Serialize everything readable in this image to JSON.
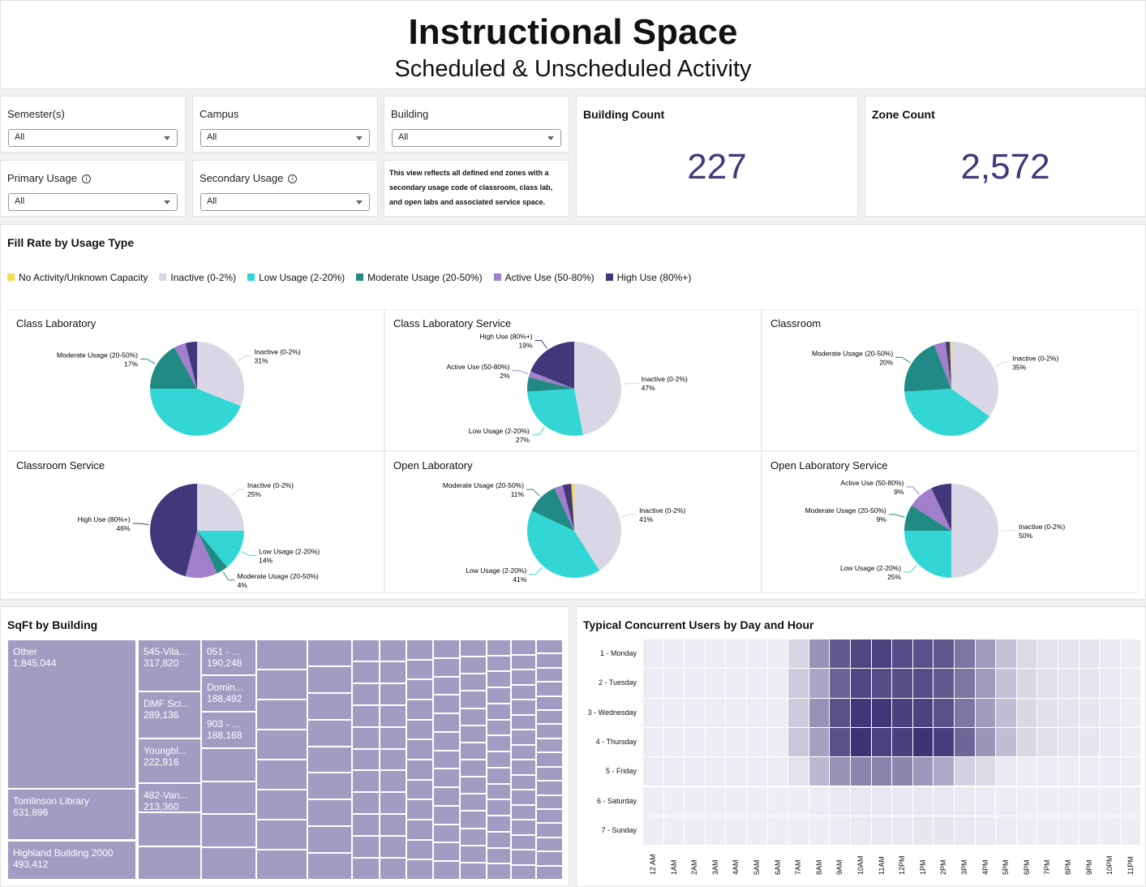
{
  "header": {
    "title": "Instructional Space",
    "subtitle": "Scheduled & Unscheduled Activity"
  },
  "filters": [
    {
      "label": "Semester(s)",
      "value": "All"
    },
    {
      "label": "Campus",
      "value": "All"
    },
    {
      "label": "Building",
      "value": "All"
    },
    {
      "label": "Primary Usage",
      "value": "All",
      "info": true
    },
    {
      "label": "Secondary Usage",
      "value": "All",
      "info": true
    }
  ],
  "note": "This view reflects all defined end zones with a secondary usage code of classroom, class lab, and open labs and associated service space.",
  "kpis": [
    {
      "label": "Building Count",
      "value": "227"
    },
    {
      "label": "Zone Count",
      "value": "2,572"
    }
  ],
  "fill_rate": {
    "title": "Fill Rate by Usage Type",
    "legend": [
      {
        "name": "No Activity/Unknown Capacity",
        "color": "#f2dd4f"
      },
      {
        "name": "Inactive (0-2%)",
        "color": "#d9d7e6"
      },
      {
        "name": "Low Usage (2-20%)",
        "color": "#32d6d4"
      },
      {
        "name": "Moderate Usage (20-50%)",
        "color": "#228a84"
      },
      {
        "name": "Active Use (50-80%)",
        "color": "#a17fcb"
      },
      {
        "name": "High Use (80%+)",
        "color": "#41377a"
      }
    ]
  },
  "chart_data": [
    {
      "type": "pie",
      "title": "Class Laboratory",
      "slices": [
        {
          "category": "Inactive (0-2%)",
          "value": 31,
          "label": "31%"
        },
        {
          "category": "Low Usage (2-20%)",
          "value": 44
        },
        {
          "category": "Moderate Usage (20-50%)",
          "value": 17,
          "label": "17%"
        },
        {
          "category": "Active Use (50-80%)",
          "value": 4
        },
        {
          "category": "High Use (80%+)",
          "value": 4
        }
      ]
    },
    {
      "type": "pie",
      "title": "Class Laboratory Service",
      "slices": [
        {
          "category": "Inactive (0-2%)",
          "value": 47,
          "label": "47%"
        },
        {
          "category": "Low Usage (2-20%)",
          "value": 27,
          "label": "27%"
        },
        {
          "category": "Moderate Usage (20-50%)",
          "value": 5
        },
        {
          "category": "Active Use (50-80%)",
          "value": 2,
          "label": "2%"
        },
        {
          "category": "High Use (80%+)",
          "value": 19,
          "label": "19%"
        }
      ]
    },
    {
      "type": "pie",
      "title": "Classroom",
      "slices": [
        {
          "category": "Inactive (0-2%)",
          "value": 35,
          "label": "35%"
        },
        {
          "category": "Low Usage (2-20%)",
          "value": 39
        },
        {
          "category": "Moderate Usage (20-50%)",
          "value": 20,
          "label": "20%"
        },
        {
          "category": "Active Use (50-80%)",
          "value": 4
        },
        {
          "category": "High Use (80%+)",
          "value": 1.5
        },
        {
          "category": "No Activity/Unknown Capacity",
          "value": 0.5
        }
      ]
    },
    {
      "type": "pie",
      "title": "Classroom Service",
      "slices": [
        {
          "category": "Inactive (0-2%)",
          "value": 25,
          "label": "25%"
        },
        {
          "category": "Low Usage (2-20%)",
          "value": 14,
          "label": "14%"
        },
        {
          "category": "Moderate Usage (20-50%)",
          "value": 4,
          "label": "4%"
        },
        {
          "category": "Active Use (50-80%)",
          "value": 11
        },
        {
          "category": "High Use (80%+)",
          "value": 46,
          "label": "46%"
        }
      ]
    },
    {
      "type": "pie",
      "title": "Open Laboratory",
      "slices": [
        {
          "category": "Inactive (0-2%)",
          "value": 41,
          "label": "41%"
        },
        {
          "category": "Low Usage (2-20%)",
          "value": 41,
          "label": "41%"
        },
        {
          "category": "Moderate Usage (20-50%)",
          "value": 11,
          "label": "11%"
        },
        {
          "category": "Active Use (50-80%)",
          "value": 3
        },
        {
          "category": "High Use (80%+)",
          "value": 3
        },
        {
          "category": "No Activity/Unknown Capacity",
          "value": 1
        }
      ]
    },
    {
      "type": "pie",
      "title": "Open Laboratory Service",
      "slices": [
        {
          "category": "Inactive (0-2%)",
          "value": 50,
          "label": "50%"
        },
        {
          "category": "Low Usage (2-20%)",
          "value": 25,
          "label": "25%"
        },
        {
          "category": "Moderate Usage (20-50%)",
          "value": 9,
          "label": "9%"
        },
        {
          "category": "Active Use (50-80%)",
          "value": 9,
          "label": "9%"
        },
        {
          "category": "High Use (80%+)",
          "value": 7
        }
      ]
    },
    {
      "type": "heatmap",
      "title": "Typical Concurrent Users by Day and Hour",
      "rows": [
        "1 - Monday",
        "2 - Tuesday",
        "3 - Wednesday",
        "4 - Thursday",
        "5 - Friday",
        "6 - Saturday",
        "7 - Sunday"
      ],
      "columns": [
        "12 AM",
        "1AM",
        "2AM",
        "3AM",
        "4AM",
        "5AM",
        "6AM",
        "7AM",
        "8AM",
        "9AM",
        "10AM",
        "11AM",
        "12PM",
        "1PM",
        "2PM",
        "3PM",
        "4PM",
        "5PM",
        "6PM",
        "7PM",
        "8PM",
        "9PM",
        "10PM",
        "11PM"
      ],
      "relative_intensity_0_10": [
        [
          0.3,
          0.3,
          0.3,
          0.3,
          0.3,
          0.3,
          0.3,
          1.5,
          5,
          8,
          9,
          9.2,
          8.7,
          8.5,
          8.2,
          6.5,
          4.5,
          2.5,
          1.2,
          0.8,
          0.7,
          0.6,
          0.4,
          0.3
        ],
        [
          0.3,
          0.3,
          0.3,
          0.3,
          0.3,
          0.3,
          0.3,
          2,
          4,
          7.5,
          9,
          8.7,
          8.6,
          8.6,
          8,
          6.5,
          4.5,
          2.5,
          1.3,
          0.9,
          0.7,
          0.6,
          0.4,
          0.3
        ],
        [
          0.3,
          0.3,
          0.3,
          0.3,
          0.3,
          0.3,
          0.3,
          2,
          5,
          8.5,
          9.8,
          9.8,
          9.3,
          9.2,
          8.5,
          6.5,
          4.5,
          2.7,
          1.3,
          0.9,
          0.7,
          0.6,
          0.4,
          0.3
        ],
        [
          0.3,
          0.3,
          0.3,
          0.3,
          0.3,
          0.3,
          0.3,
          2.2,
          4.2,
          8.5,
          10,
          9.2,
          9.3,
          10,
          9.4,
          7.3,
          4.8,
          2.7,
          1.3,
          0.9,
          0.7,
          0.6,
          0.4,
          0.3
        ],
        [
          0.3,
          0.3,
          0.3,
          0.3,
          0.3,
          0.3,
          0.3,
          0.8,
          3,
          5,
          5.7,
          5.8,
          5.6,
          4.7,
          3.8,
          1.7,
          1.2,
          0.4,
          0.3,
          0.3,
          0.3,
          0.3,
          0.3,
          0.3
        ],
        [
          0.2,
          0.2,
          0.2,
          0.2,
          0.2,
          0.2,
          0.2,
          0.2,
          0.3,
          0.4,
          0.5,
          0.5,
          0.5,
          0.5,
          0.5,
          0.4,
          0.3,
          0.3,
          0.2,
          0.2,
          0.2,
          0.2,
          0.2,
          0.2
        ],
        [
          0.2,
          0.2,
          0.2,
          0.2,
          0.2,
          0.2,
          0.2,
          0.2,
          0.2,
          0.3,
          0.4,
          0.5,
          0.5,
          0.6,
          0.6,
          0.5,
          0.4,
          0.3,
          0.2,
          0.2,
          0.2,
          0.2,
          0.2,
          0.2
        ]
      ],
      "color_low": "#f2f1f7",
      "color_high": "#3f3275"
    }
  ],
  "sqft": {
    "title": "SqFt by Building",
    "items": [
      {
        "name": "Other",
        "value": "1,845,044"
      },
      {
        "name": "Tomlinson Library",
        "value": "631,896"
      },
      {
        "name": "Highland Building 2000",
        "value": "493,412"
      },
      {
        "name": "545-Vila...",
        "value": "317,820"
      },
      {
        "name": "DMF Sci...",
        "value": "289,136"
      },
      {
        "name": "Youngbl...",
        "value": "222,916"
      },
      {
        "name": "482-Van...",
        "value": "213,360"
      },
      {
        "name": "051 - ...",
        "value": "190,248"
      },
      {
        "name": "Domin...",
        "value": "188,492"
      },
      {
        "name": "903 - ...",
        "value": "188,168"
      }
    ],
    "color": "#a29bc2"
  }
}
